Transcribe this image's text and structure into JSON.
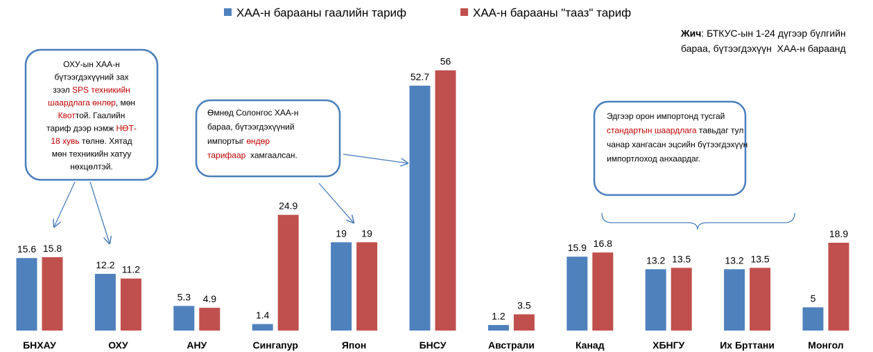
{
  "chart_data": {
    "type": "bar",
    "categories": [
      "БНХАУ",
      "ОХУ",
      "АНУ",
      "Сингапур",
      "Япон",
      "БНСУ",
      "Австрали",
      "Канад",
      "ХБНГУ",
      "Их Бртт­ани",
      "Монгол"
    ],
    "series": [
      {
        "name": "ХАА-н барааны гаалийн тариф",
        "color": "#4f81bd",
        "values": [
          15.6,
          12.2,
          5.3,
          1.4,
          19,
          52.7,
          1.2,
          15.9,
          13.2,
          13.2,
          5
        ]
      },
      {
        "name": "ХАА-н барааны \"тааз\" тариф",
        "color": "#c0504d",
        "values": [
          15.8,
          11.2,
          4.9,
          24.9,
          19,
          56,
          3.5,
          16.8,
          13.5,
          13.5,
          18.9
        ]
      }
    ],
    "note": [
      [
        {
          "text": "Жич",
          "bold": true
        },
        {
          "text": ": БТКУС-ын 1-24 дүгээр бүлгийн"
        }
      ],
      [
        {
          "text": "бараа, бүтээгдэхүүн  ХАА-н бараанд"
        }
      ]
    ],
    "annotations": [
      {
        "lines": [
          [
            {
              "text": "ОХУ-ын ХАА-н"
            }
          ],
          [
            {
              "text": "бүтээгдэхүүний зах"
            }
          ],
          [
            {
              "text": "зээл "
            },
            {
              "text": "SPS техникийн",
              "color": "#c00000"
            }
          ],
          [
            {
              "text": "шаардлага өнлөр",
              "color": "#c00000"
            },
            {
              "text": ", мөн"
            }
          ],
          [
            {
              "text": "Квот",
              "color": "#c00000"
            },
            {
              "text": "той. Гаалийн"
            }
          ],
          [
            {
              "text": "тариф дээр нэмж "
            },
            {
              "text": "НӨТ-",
              "color": "#c00000"
            }
          ],
          [
            {
              "text": "18 хувь",
              "color": "#c00000"
            },
            {
              "text": " төлнө. Хятад"
            }
          ],
          [
            {
              "text": "мөн техникийн хатуу"
            }
          ],
          [
            {
              "text": "нөхцөлтэй."
            }
          ]
        ]
      },
      {
        "lines": [
          [
            {
              "text": "Өмнөд Солонгос ХАА-н"
            }
          ],
          [
            {
              "text": "бараа, бүтээгдэхүүний"
            }
          ],
          [
            {
              "text": "импортыг "
            },
            {
              "text": "өндөр",
              "color": "#c00000"
            }
          ],
          [
            {
              "text": "тарифаар",
              "color": "#c00000"
            },
            {
              "text": "  хамгаалсан."
            }
          ]
        ]
      },
      {
        "lines": [
          [
            {
              "text": "Эдгээр орон импортонд тусгай"
            }
          ],
          [
            {
              "text": "стандартын шаардлага",
              "color": "#c00000"
            },
            {
              "text": " тавьдаг тул"
            }
          ],
          [
            {
              "text": "чанар хангасан эцсийн бүтээгдэхүүн"
            }
          ],
          [
            {
              "text": "импортлоход анхаардаг."
            }
          ]
        ]
      }
    ]
  }
}
